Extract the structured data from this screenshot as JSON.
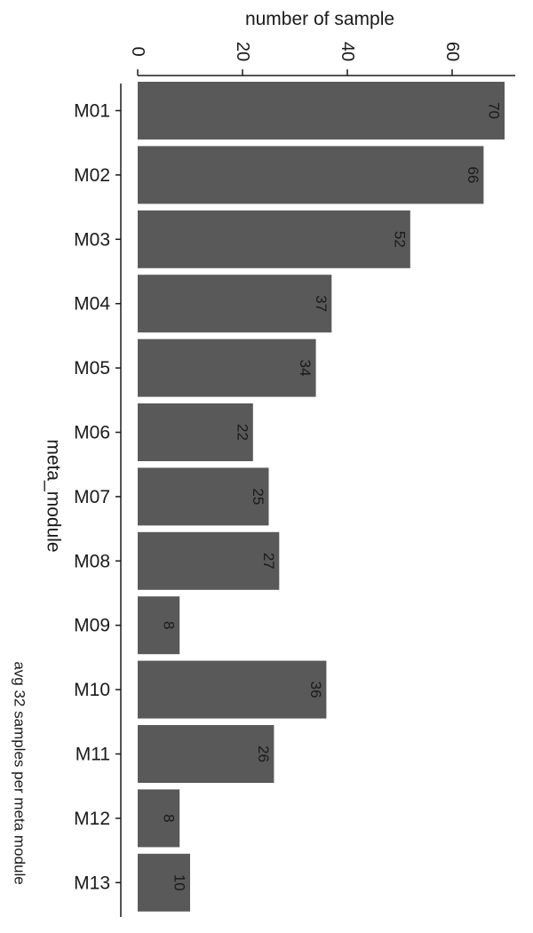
{
  "chart_data": {
    "type": "bar",
    "orientation": "horizontal",
    "categories": [
      "M01",
      "M02",
      "M03",
      "M04",
      "M05",
      "M06",
      "M07",
      "M08",
      "M09",
      "M10",
      "M11",
      "M12",
      "M13"
    ],
    "values": [
      70,
      66,
      52,
      37,
      34,
      22,
      25,
      27,
      8,
      36,
      26,
      8,
      10
    ],
    "value_labels": [
      "70",
      "66",
      "52",
      "37",
      "34",
      "22",
      "25",
      "27",
      "8",
      "36",
      "26",
      "8",
      "10"
    ],
    "xlabel": "number of sample",
    "ylabel": "meta_module",
    "caption": "avg 32 samples per meta module",
    "xlim": [
      0,
      75
    ],
    "x_ticks": [
      0,
      20,
      40,
      60
    ],
    "x_axis_position": "top",
    "grid": false,
    "legend": "none",
    "bar_color": "#595959"
  }
}
